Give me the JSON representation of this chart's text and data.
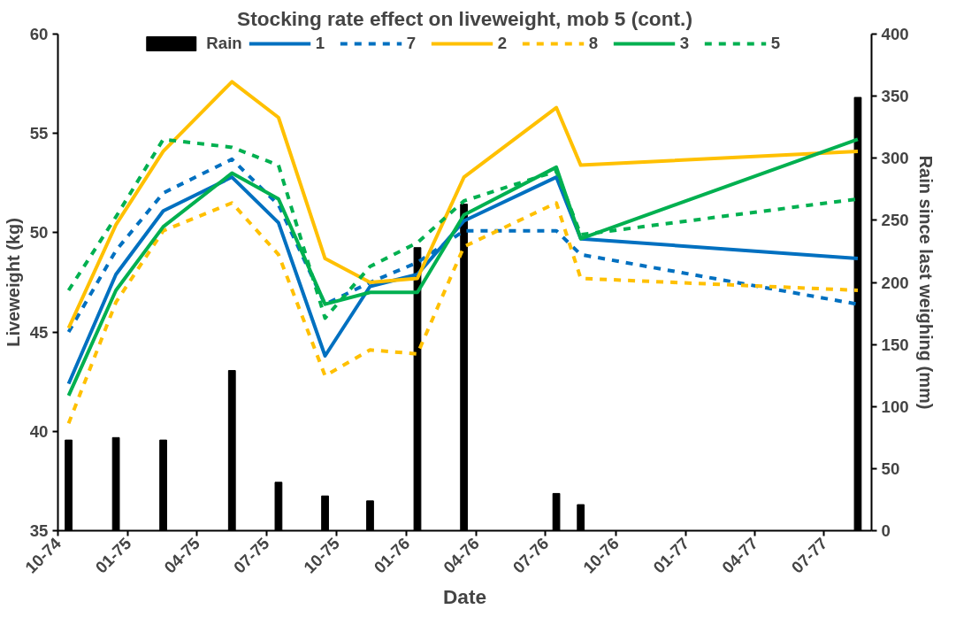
{
  "chart_data": {
    "type": "line",
    "title": "Stocking rate effect on liveweight, mob 5 (cont.)",
    "xlabel": "Date",
    "ylabel": "Liveweight (kg)",
    "y2label": "Rain since last weighing (mm)",
    "x": [
      "1974-10-15",
      "1974-12-16",
      "1975-02-16",
      "1975-05-17",
      "1975-07-17",
      "1975-09-16",
      "1975-11-14",
      "1976-01-15",
      "1976-03-16",
      "1976-07-15",
      "1976-08-16",
      "1977-08-14"
    ],
    "xlim": [
      "1974-10-01",
      "1977-09-01"
    ],
    "xticks": [
      {
        "value": "1974-10-01",
        "label": "10-74"
      },
      {
        "value": "1975-01-01",
        "label": "01-75"
      },
      {
        "value": "1975-04-01",
        "label": "04-75"
      },
      {
        "value": "1975-07-01",
        "label": "07-75"
      },
      {
        "value": "1975-10-01",
        "label": "10-75"
      },
      {
        "value": "1976-01-01",
        "label": "01-76"
      },
      {
        "value": "1976-04-01",
        "label": "04-76"
      },
      {
        "value": "1976-07-01",
        "label": "07-76"
      },
      {
        "value": "1976-10-01",
        "label": "10-76"
      },
      {
        "value": "1977-01-01",
        "label": "01-77"
      },
      {
        "value": "1977-04-01",
        "label": "04-77"
      },
      {
        "value": "1977-07-01",
        "label": "07-77"
      }
    ],
    "ylim": [
      35,
      60
    ],
    "yticks": [
      35,
      40,
      45,
      50,
      55,
      60
    ],
    "y2lim": [
      0,
      400
    ],
    "y2ticks": [
      0,
      50,
      100,
      150,
      200,
      250,
      300,
      350,
      400
    ],
    "legend": "top",
    "series": [
      {
        "name": "Rain",
        "type": "bar",
        "axis": "y2",
        "color": "#000000",
        "values": [
          73,
          75,
          73,
          129,
          39,
          28,
          24,
          228,
          263,
          30,
          21,
          349
        ]
      },
      {
        "name": "1",
        "color": "#0070c0",
        "line_style": "solid",
        "values": [
          42.4,
          47.9,
          51.1,
          52.8,
          50.5,
          43.8,
          47.3,
          47.9,
          50.6,
          52.8,
          49.7,
          48.7
        ]
      },
      {
        "name": "7",
        "color": "#0070c0",
        "line_style": "dashed",
        "values": [
          45.0,
          49.1,
          52.0,
          53.7,
          51.4,
          46.4,
          47.5,
          48.5,
          50.1,
          50.1,
          48.9,
          46.4
        ]
      },
      {
        "name": "2",
        "color": "#ffc000",
        "line_style": "solid",
        "values": [
          45.2,
          50.4,
          54.1,
          57.6,
          55.8,
          48.7,
          47.5,
          47.7,
          52.8,
          56.3,
          53.4,
          54.1
        ]
      },
      {
        "name": "8",
        "color": "#ffc000",
        "line_style": "dashed",
        "values": [
          40.4,
          46.5,
          50.1,
          51.5,
          48.9,
          42.8,
          44.1,
          43.9,
          49.3,
          51.5,
          47.7,
          47.1
        ]
      },
      {
        "name": "3",
        "color": "#00b050",
        "line_style": "solid",
        "values": [
          41.8,
          47.1,
          50.3,
          53.0,
          51.7,
          46.4,
          47.0,
          47.0,
          50.9,
          53.3,
          49.7,
          54.7
        ]
      },
      {
        "name": "5",
        "color": "#00b050",
        "line_style": "dashed",
        "values": [
          47.1,
          50.8,
          54.7,
          54.3,
          53.4,
          45.7,
          48.3,
          49.5,
          51.6,
          53.1,
          49.9,
          51.7
        ]
      }
    ]
  }
}
